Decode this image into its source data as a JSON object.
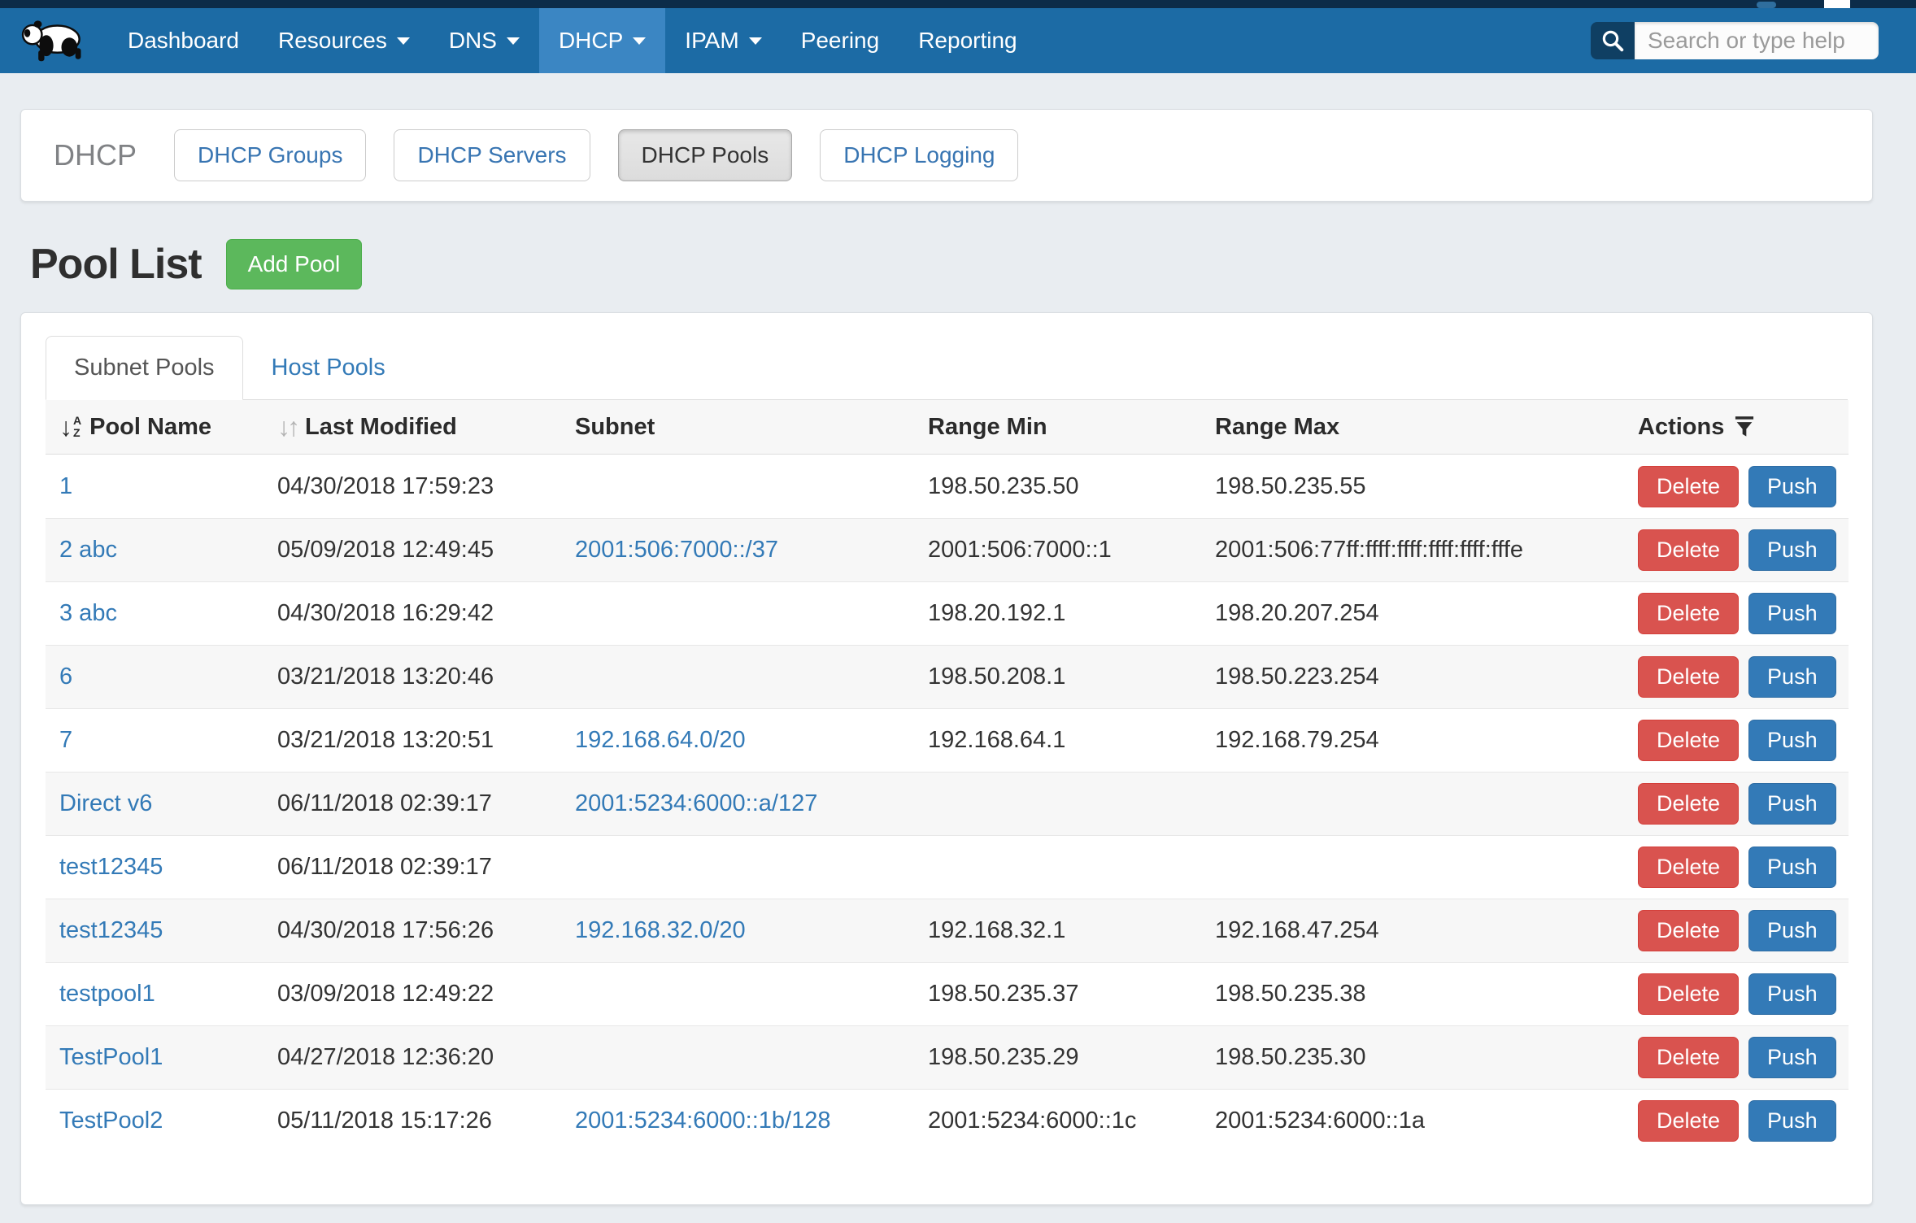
{
  "navbar": {
    "items": [
      {
        "label": "Dashboard",
        "caret": false,
        "active": false
      },
      {
        "label": "Resources",
        "caret": true,
        "active": false
      },
      {
        "label": "DNS",
        "caret": true,
        "active": false
      },
      {
        "label": "DHCP",
        "caret": true,
        "active": true
      },
      {
        "label": "IPAM",
        "caret": true,
        "active": false
      },
      {
        "label": "Peering",
        "caret": false,
        "active": false
      },
      {
        "label": "Reporting",
        "caret": false,
        "active": false
      }
    ],
    "search_placeholder": "Search or type help",
    "logo": "panda"
  },
  "subnav": {
    "title": "DHCP",
    "buttons": [
      {
        "label": "DHCP Groups",
        "active": false
      },
      {
        "label": "DHCP Servers",
        "active": false
      },
      {
        "label": "DHCP Pools",
        "active": true
      },
      {
        "label": "DHCP Logging",
        "active": false
      }
    ]
  },
  "page": {
    "title": "Pool List",
    "add_button": "Add Pool"
  },
  "tabs": [
    {
      "label": "Subnet Pools",
      "active": true
    },
    {
      "label": "Host Pools",
      "active": false
    }
  ],
  "icons": {
    "sort_alpha_arrow": "↓",
    "sort_alpha_top": "A",
    "sort_alpha_bottom": "Z",
    "sort_down": "↓",
    "sort_up": "↑",
    "filter": "funnel",
    "search": "magnifier",
    "caret": "▾"
  },
  "table": {
    "columns": [
      "Pool Name",
      "Last Modified",
      "Subnet",
      "Range Min",
      "Range Max",
      "Actions"
    ],
    "actions": {
      "delete": "Delete",
      "push": "Push"
    },
    "rows": [
      {
        "name": "1",
        "modified": "04/30/2018 17:59:23",
        "subnet": "",
        "min": "198.50.235.50",
        "max": "198.50.235.55"
      },
      {
        "name": "2 abc",
        "modified": "05/09/2018 12:49:45",
        "subnet": "2001:506:7000::/37",
        "min": "2001:506:7000::1",
        "max": "2001:506:77ff:ffff:ffff:ffff:ffff:fffe"
      },
      {
        "name": "3 abc",
        "modified": "04/30/2018 16:29:42",
        "subnet": "",
        "min": "198.20.192.1",
        "max": "198.20.207.254"
      },
      {
        "name": "6",
        "modified": "03/21/2018 13:20:46",
        "subnet": "",
        "min": "198.50.208.1",
        "max": "198.50.223.254"
      },
      {
        "name": "7",
        "modified": "03/21/2018 13:20:51",
        "subnet": "192.168.64.0/20",
        "min": "192.168.64.1",
        "max": "192.168.79.254"
      },
      {
        "name": "Direct v6",
        "modified": "06/11/2018 02:39:17",
        "subnet": "2001:5234:6000::a/127",
        "min": "",
        "max": ""
      },
      {
        "name": "test12345",
        "modified": "06/11/2018 02:39:17",
        "subnet": "",
        "min": "",
        "max": ""
      },
      {
        "name": "test12345",
        "modified": "04/30/2018 17:56:26",
        "subnet": "192.168.32.0/20",
        "min": "192.168.32.1",
        "max": "192.168.47.254"
      },
      {
        "name": "testpool1",
        "modified": "03/09/2018 12:49:22",
        "subnet": "",
        "min": "198.50.235.37",
        "max": "198.50.235.38"
      },
      {
        "name": "TestPool1",
        "modified": "04/27/2018 12:36:20",
        "subnet": "",
        "min": "198.50.235.29",
        "max": "198.50.235.30"
      },
      {
        "name": "TestPool2",
        "modified": "05/11/2018 15:17:26",
        "subnet": "2001:5234:6000::1b/128",
        "min": "2001:5234:6000::1c",
        "max": "2001:5234:6000::1a"
      }
    ]
  },
  "colors": {
    "navbar": "#1c6ba5",
    "navbar_active": "#3b86c3",
    "page_background": "#e9edf1",
    "link_blue": "#337ab7",
    "add_green": "#5cb85c",
    "delete_red": "#d9534f",
    "push_blue": "#337ab7"
  }
}
